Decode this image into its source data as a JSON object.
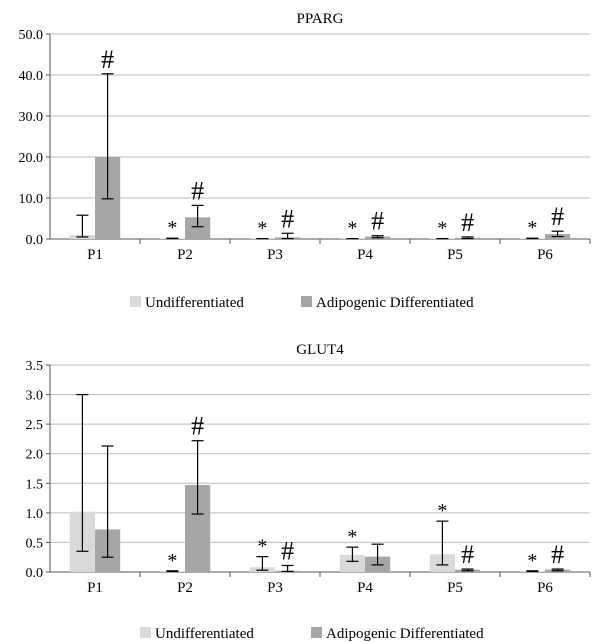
{
  "chart_data": [
    {
      "type": "bar",
      "title": "PPARG",
      "categories": [
        "P1",
        "P2",
        "P3",
        "P4",
        "P5",
        "P6"
      ],
      "ylim": [
        0,
        50
      ],
      "yticks": [
        "0.0",
        "10.0",
        "20.0",
        "30.0",
        "40.0",
        "50.0"
      ],
      "ytick_values": [
        0,
        10,
        20,
        30,
        40,
        50
      ],
      "grid": true,
      "legend_position": "bottom",
      "series": [
        {
          "name": "Undifferentiated",
          "color": "#d9d9d9",
          "values": [
            1.0,
            0.1,
            0.1,
            0.1,
            0.1,
            0.1
          ],
          "err_low": [
            0.5,
            0.1,
            0.1,
            0.1,
            0.1,
            0.1
          ],
          "err_high": [
            5.8,
            0.2,
            0.1,
            0.1,
            0.1,
            0.2
          ],
          "markers": [
            "",
            "*",
            "*",
            "*",
            "*",
            "*"
          ]
        },
        {
          "name": "Adipogenic Differentiated",
          "color": "#a6a6a6",
          "values": [
            20.0,
            5.3,
            0.4,
            0.6,
            0.3,
            1.2
          ],
          "err_low": [
            9.8,
            3.0,
            0.1,
            0.3,
            0.1,
            0.6
          ],
          "err_high": [
            40.3,
            8.2,
            1.4,
            0.8,
            0.5,
            1.9
          ],
          "markers": [
            "#",
            "#",
            "#",
            "#",
            "#",
            "#"
          ]
        }
      ]
    },
    {
      "type": "bar",
      "title": "GLUT4",
      "categories": [
        "P1",
        "P2",
        "P3",
        "P4",
        "P5",
        "P6"
      ],
      "ylim": [
        0,
        3.5
      ],
      "yticks": [
        "0.0",
        "0.5",
        "1.0",
        "1.5",
        "2.0",
        "2.5",
        "3.0",
        "3.5"
      ],
      "ytick_values": [
        0,
        0.5,
        1.0,
        1.5,
        2.0,
        2.5,
        3.0,
        3.5
      ],
      "grid": true,
      "legend_position": "bottom",
      "series": [
        {
          "name": "Undifferentiated",
          "color": "#d9d9d9",
          "values": [
            1.02,
            0.01,
            0.08,
            0.29,
            0.3,
            0.01
          ],
          "err_low": [
            0.35,
            0.01,
            0.03,
            0.18,
            0.12,
            0.01
          ],
          "err_high": [
            3.0,
            0.02,
            0.26,
            0.42,
            0.86,
            0.02
          ],
          "markers": [
            "",
            "*",
            "*",
            "*",
            "*",
            "*"
          ]
        },
        {
          "name": "Adipogenic Differentiated",
          "color": "#a6a6a6",
          "values": [
            0.72,
            1.47,
            0.02,
            0.26,
            0.04,
            0.04
          ],
          "err_low": [
            0.25,
            0.98,
            0.01,
            0.12,
            0.02,
            0.02
          ],
          "err_high": [
            2.13,
            2.22,
            0.11,
            0.47,
            0.05,
            0.05
          ],
          "markers": [
            "",
            "#",
            "#",
            "",
            "#",
            "#"
          ]
        }
      ]
    }
  ]
}
